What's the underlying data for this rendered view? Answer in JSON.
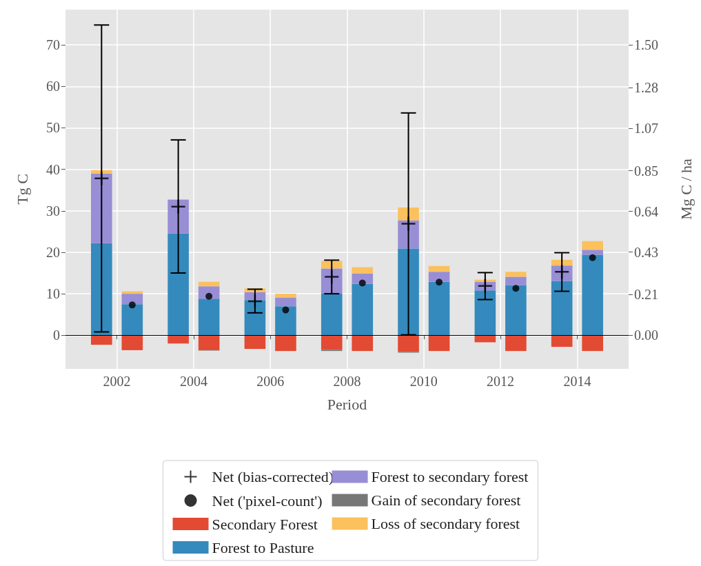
{
  "chart_data": {
    "type": "bar",
    "stacked": true,
    "xlabel": "Period",
    "ylabel": "Tg C",
    "y2label": "Mg C / ha",
    "x": [
      2001.6,
      2002.4,
      2003.6,
      2004.4,
      2005.6,
      2006.4,
      2007.6,
      2008.4,
      2009.6,
      2010.4,
      2011.6,
      2012.4,
      2013.6,
      2014.4
    ],
    "xlim": [
      2000.66,
      2015.34
    ],
    "xticks": [
      2002,
      2004,
      2006,
      2008,
      2010,
      2012,
      2014
    ],
    "ylim": [
      -8.1,
      78.5
    ],
    "yticks": [
      0,
      10,
      20,
      30,
      40,
      50,
      60,
      70
    ],
    "y2lim": [
      -0.1736,
      1.682
    ],
    "y2ticks": [
      {
        "value": 0,
        "label": "0.00"
      },
      0.21,
      0.43,
      0.64,
      0.85,
      1.07,
      1.28,
      {
        "value": 1.5,
        "label": "1.50"
      }
    ],
    "grid": true,
    "legend": "bottom",
    "ref_lines": [
      {
        "axis": "y",
        "value": 0,
        "color": "#000000"
      }
    ],
    "series": [
      {
        "name": "Net (bias-corrected)",
        "type": "scatter",
        "marker": "cross",
        "color": "#000000",
        "x": [
          2001.6,
          2003.6,
          2005.6,
          2007.6,
          2009.6,
          2011.6,
          2013.6
        ],
        "values": [
          37.8,
          31.0,
          8.2,
          14.1,
          26.9,
          11.9,
          15.3
        ],
        "errors": [
          [
            0.8,
            74.8
          ],
          [
            15.0,
            47.1
          ],
          [
            5.4,
            11.1
          ],
          [
            10.0,
            18.1
          ],
          [
            0.1,
            53.6
          ],
          [
            8.6,
            15.1
          ],
          [
            10.6,
            19.9
          ]
        ]
      },
      {
        "name": "Net ('pixel-count')",
        "type": "scatter",
        "marker": "circle",
        "color": "#000000",
        "x": [
          2002.4,
          2004.4,
          2006.4,
          2008.4,
          2010.4,
          2012.4,
          2014.4
        ],
        "values": [
          7.3,
          9.4,
          6.1,
          12.6,
          12.8,
          11.3,
          18.7
        ]
      },
      {
        "name": "Secondary Forest",
        "color": "#e24a33",
        "values": [
          -2.3,
          -3.6,
          -2.0,
          -3.6,
          -3.3,
          -3.8,
          -3.5,
          -3.8,
          -4.0,
          -3.8,
          -1.7,
          -3.8,
          -2.8,
          -3.8
        ]
      },
      {
        "name": "Forest to Pasture",
        "color": "#348abd",
        "values": [
          22.2,
          7.5,
          24.5,
          8.8,
          8.5,
          7.0,
          10.0,
          12.4,
          20.9,
          12.9,
          10.8,
          12.1,
          13.1,
          19.4
        ]
      },
      {
        "name": "Forest to secondary forest",
        "color": "#988ed5",
        "values": [
          16.8,
          2.5,
          8.2,
          3.0,
          1.9,
          2.1,
          6.1,
          2.5,
          6.8,
          2.4,
          2.1,
          2.0,
          3.7,
          1.2
        ]
      },
      {
        "name": "Gain of secondary forest",
        "color": "#777777",
        "values": [
          0,
          0,
          0,
          -0.1,
          0,
          0,
          -0.3,
          0,
          -0.2,
          0,
          0,
          0,
          0,
          0
        ]
      },
      {
        "name": "Loss of secondary forest",
        "color": "#fbc15e",
        "values": [
          0.8,
          0.6,
          0.1,
          1.1,
          0.9,
          0.9,
          1.8,
          1.5,
          3.1,
          1.4,
          0.5,
          1.2,
          1.4,
          2.1
        ]
      }
    ]
  }
}
